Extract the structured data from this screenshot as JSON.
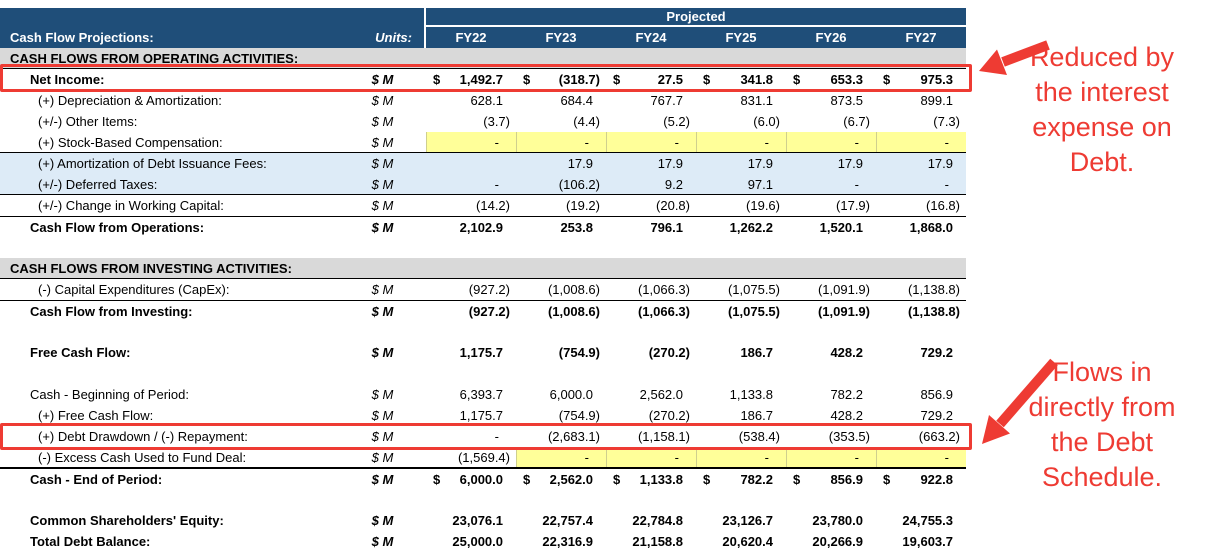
{
  "header": {
    "title": "Cash Flow Projections:",
    "units_label": "Units:",
    "projected_label": "Projected",
    "years": [
      "FY22",
      "FY23",
      "FY24",
      "FY25",
      "FY26",
      "FY27"
    ]
  },
  "table": {
    "rows": [
      {
        "type": "section",
        "label": "CASH FLOWS FROM OPERATING ACTIVITIES:"
      },
      {
        "type": "data",
        "bold": true,
        "indent": 1,
        "redbox": true,
        "dollar": true,
        "label": "Net Income:",
        "units": "$ M",
        "values": [
          "1,492.7",
          "(318.7)",
          "27.5",
          "341.8",
          "653.3",
          "975.3"
        ]
      },
      {
        "type": "data",
        "indent": 2,
        "label": "(+) Depreciation & Amortization:",
        "units": "$ M",
        "values": [
          "628.1",
          "684.4",
          "767.7",
          "831.1",
          "873.5",
          "899.1"
        ]
      },
      {
        "type": "data",
        "indent": 2,
        "label": "(+/-) Other Items:",
        "units": "$ M",
        "values": [
          "(3.7)",
          "(4.4)",
          "(5.2)",
          "(6.0)",
          "(6.7)",
          "(7.3)"
        ]
      },
      {
        "type": "data",
        "indent": 2,
        "label": "(+) Stock-Based Compensation:",
        "units": "$ M",
        "value_fill": "yellow",
        "fill_from": 0,
        "border_bottom": true,
        "values": [
          "-",
          "-",
          "-",
          "-",
          "-",
          "-"
        ]
      },
      {
        "type": "data",
        "indent": 2,
        "label": "(+) Amortization of Debt Issuance Fees:",
        "units": "$ M",
        "band": "blue",
        "values": [
          "",
          "17.9",
          "17.9",
          "17.9",
          "17.9",
          "17.9"
        ]
      },
      {
        "type": "data",
        "indent": 2,
        "label": "(+/-) Deferred Taxes:",
        "units": "$ M",
        "band": "blue",
        "border_bottom": true,
        "values": [
          "-",
          "(106.2)",
          "9.2",
          "97.1",
          "-",
          "-"
        ]
      },
      {
        "type": "data",
        "indent": 2,
        "label": "(+/-) Change in Working Capital:",
        "units": "$ M",
        "values": [
          "(14.2)",
          "(19.2)",
          "(20.8)",
          "(19.6)",
          "(17.9)",
          "(16.8)"
        ]
      },
      {
        "type": "total",
        "bold": true,
        "indent": 1,
        "border_top": true,
        "label": "Cash Flow from Operations:",
        "units": "$ M",
        "values": [
          "2,102.9",
          "253.8",
          "796.1",
          "1,262.2",
          "1,520.1",
          "1,868.0"
        ]
      },
      {
        "type": "blank"
      },
      {
        "type": "section",
        "label": "CASH FLOWS FROM INVESTING ACTIVITIES:"
      },
      {
        "type": "data",
        "indent": 2,
        "label": "(-) Capital Expenditures (CapEx):",
        "units": "$ M",
        "values": [
          "(927.2)",
          "(1,008.6)",
          "(1,066.3)",
          "(1,075.5)",
          "(1,091.9)",
          "(1,138.8)"
        ]
      },
      {
        "type": "total",
        "bold": true,
        "indent": 1,
        "border_top": true,
        "label": "Cash Flow from Investing:",
        "units": "$ M",
        "values": [
          "(927.2)",
          "(1,008.6)",
          "(1,066.3)",
          "(1,075.5)",
          "(1,091.9)",
          "(1,138.8)"
        ]
      },
      {
        "type": "blank"
      },
      {
        "type": "total",
        "bold": true,
        "indent": 1,
        "label": "Free Cash Flow:",
        "units": "$ M",
        "values": [
          "1,175.7",
          "(754.9)",
          "(270.2)",
          "186.7",
          "428.2",
          "729.2"
        ]
      },
      {
        "type": "blank"
      },
      {
        "type": "data",
        "indent": 1,
        "label": "Cash - Beginning of Period:",
        "units": "$ M",
        "values": [
          "6,393.7",
          "6,000.0",
          "2,562.0",
          "1,133.8",
          "782.2",
          "856.9"
        ]
      },
      {
        "type": "data",
        "indent": 2,
        "label": "(+) Free Cash Flow:",
        "units": "$ M",
        "values": [
          "1,175.7",
          "(754.9)",
          "(270.2)",
          "186.7",
          "428.2",
          "729.2"
        ]
      },
      {
        "type": "data",
        "indent": 2,
        "redbox": true,
        "label": "(+) Debt Drawdown / (-) Repayment:",
        "units": "$ M",
        "values": [
          "-",
          "(2,683.1)",
          "(1,158.1)",
          "(538.4)",
          "(353.5)",
          "(663.2)"
        ]
      },
      {
        "type": "data",
        "indent": 2,
        "label": "(-) Excess Cash Used to Fund Deal:",
        "units": "$ M",
        "value_fill": "yellow",
        "fill_from": 1,
        "border_bottom": true,
        "values": [
          "(1,569.4)",
          "-",
          "-",
          "-",
          "-",
          "-"
        ]
      },
      {
        "type": "total",
        "bold": true,
        "indent": 1,
        "dollar": true,
        "border_top": true,
        "label": "Cash - End of Period:",
        "units": "$ M",
        "values": [
          "6,000.0",
          "2,562.0",
          "1,133.8",
          "782.2",
          "856.9",
          "922.8"
        ]
      },
      {
        "type": "blank"
      },
      {
        "type": "total",
        "bold": true,
        "indent": 1,
        "label": "Common Shareholders' Equity:",
        "units": "$ M",
        "values": [
          "23,076.1",
          "22,757.4",
          "22,784.8",
          "23,126.7",
          "23,780.0",
          "24,755.3"
        ]
      },
      {
        "type": "total",
        "bold": true,
        "indent": 1,
        "label": "Total Debt Balance:",
        "units": "$ M",
        "values": [
          "25,000.0",
          "22,316.9",
          "21,158.8",
          "20,620.4",
          "20,266.9",
          "19,603.7"
        ]
      }
    ]
  },
  "annotations": [
    {
      "name": "net-income-note",
      "lines": [
        "Reduced by",
        "the interest",
        "expense on",
        "Debt."
      ]
    },
    {
      "name": "debt-drawdown-note",
      "lines": [
        "Flows in",
        "directly from",
        "the Debt",
        "Schedule."
      ]
    }
  ],
  "colors": {
    "header_navy": "#1F4E79",
    "section_gray": "#D9D9D9",
    "band_blue": "#DDEBF7",
    "cell_yellow": "#FFFF99",
    "annotation_red": "#EE3B33"
  }
}
